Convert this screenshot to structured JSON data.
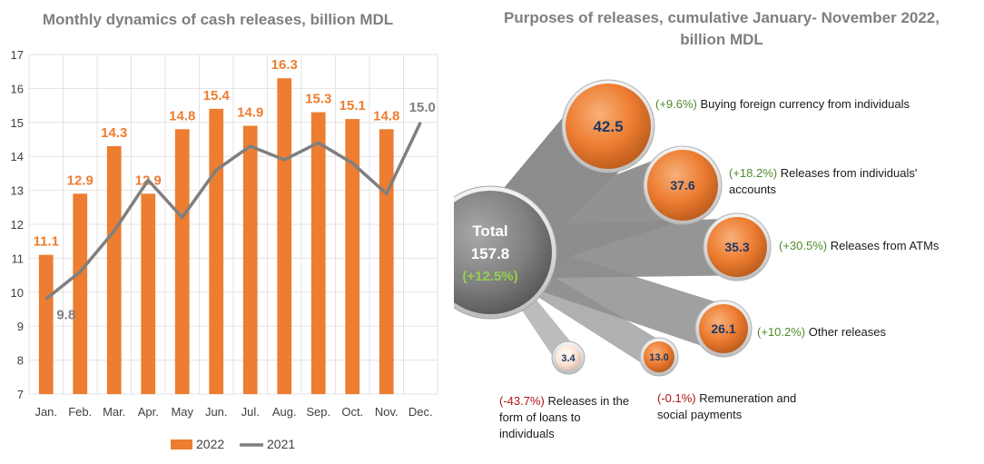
{
  "chart_data": [
    {
      "type": "bar",
      "title": "Monthly dynamics of cash releases, billion MDL",
      "categories": [
        "Jan.",
        "Feb.",
        "Mar.",
        "Apr.",
        "May",
        "Jun.",
        "Jul.",
        "Aug.",
        "Sep.",
        "Oct.",
        "Nov.",
        "Dec."
      ],
      "series": [
        {
          "name": "2022",
          "kind": "bar",
          "color": "#ed7d31",
          "values": [
            11.1,
            12.9,
            14.3,
            12.9,
            14.8,
            15.4,
            14.9,
            16.3,
            15.3,
            15.1,
            14.8,
            null
          ]
        },
        {
          "name": "2021",
          "kind": "line",
          "color": "#7f7f7f",
          "values": [
            9.8,
            10.6,
            11.8,
            13.3,
            12.2,
            13.6,
            14.3,
            13.9,
            14.4,
            13.8,
            12.9,
            15.0
          ]
        }
      ],
      "data_labels_2022": [
        "11.1",
        "12.9",
        "14.3",
        "12.9",
        "14.8",
        "15.4",
        "14.9",
        "16.3",
        "15.3",
        "15.1",
        "14.8"
      ],
      "line_labels_2021": [
        {
          "index": 0,
          "text": "9.8"
        },
        {
          "index": 11,
          "text": "15.0"
        }
      ],
      "yticks": [
        "7",
        "8",
        "9",
        "10",
        "11",
        "12",
        "13",
        "14",
        "15",
        "16",
        "17"
      ],
      "ylim": [
        7,
        17
      ],
      "grid": true,
      "legend_position": "bottom",
      "xlabel": "",
      "ylabel": ""
    },
    {
      "type": "bubble",
      "title": "Purposes of releases, cumulative January- November 2022, billion MDL",
      "total": {
        "label": "Total",
        "value": "157.8",
        "change": "(+12.5%)",
        "numeric": 157.8
      },
      "items": [
        {
          "value": 42.5,
          "text": "42.5",
          "change": "(+9.6%)",
          "change_sign": "pos",
          "label": "Buying foreign currency from individuals"
        },
        {
          "value": 37.6,
          "text": "37.6",
          "change": "(+18.2%)",
          "change_sign": "pos",
          "label": "Releases from individuals' accounts"
        },
        {
          "value": 35.3,
          "text": "35.3",
          "change": "(+30.5%)",
          "change_sign": "pos",
          "label": "Releases from ATMs"
        },
        {
          "value": 26.1,
          "text": "26.1",
          "change": "(+10.2%)",
          "change_sign": "pos",
          "label": "Other releases"
        },
        {
          "value": 13.0,
          "text": "13.0",
          "change": "(-0.1%)",
          "change_sign": "neg",
          "label": "Remuneration and social payments"
        },
        {
          "value": 3.4,
          "text": "3.4",
          "change": "(-43.7%)",
          "change_sign": "neg",
          "label": "Releases in the form of loans to individuals"
        }
      ]
    }
  ],
  "colors": {
    "bar": "#ed7d31",
    "line": "#7f7f7f",
    "bubble_orange": "#ed7d31",
    "total_bubble": "#7f7f7f",
    "positive": "#4f8a2a",
    "negative": "#b0121b",
    "title": "#7f7f7f",
    "total_change": "#92d050"
  },
  "legend": [
    {
      "label": "2022",
      "color": "#ed7d31",
      "kind": "bar"
    },
    {
      "label": "2021",
      "color": "#7f7f7f",
      "kind": "line"
    }
  ]
}
